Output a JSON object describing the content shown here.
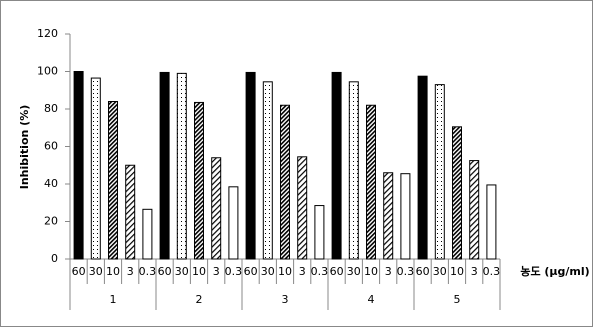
{
  "chart_data": {
    "type": "bar",
    "y_label": "Inhibition (%)",
    "x_label": "농도 (μg/ml)",
    "categories": [
      "1",
      "2",
      "3",
      "4",
      "5"
    ],
    "series": [
      {
        "name": "60",
        "color": "#000000",
        "pattern": "solid",
        "values": [
          100,
          99.5,
          99.5,
          99.5,
          97.5
        ]
      },
      {
        "name": "30",
        "color": "#000000",
        "pattern": "dots",
        "values": [
          96.5,
          99,
          94.5,
          94.5,
          93
        ]
      },
      {
        "name": "10",
        "color": "#000000",
        "pattern": "dense-hatch",
        "values": [
          84,
          83.5,
          82,
          82,
          70.5
        ]
      },
      {
        "name": "3",
        "color": "#000000",
        "pattern": "hatch",
        "values": [
          50,
          54,
          54.5,
          46,
          52.5
        ]
      },
      {
        "name": "0.3",
        "color": "#000000",
        "pattern": "none",
        "values": [
          26.5,
          38.5,
          28.5,
          45.5,
          39.5
        ]
      }
    ],
    "ylim": [
      0,
      120
    ],
    "yticks": [
      0,
      20,
      40,
      60,
      80,
      100,
      120
    ],
    "grid": false
  }
}
